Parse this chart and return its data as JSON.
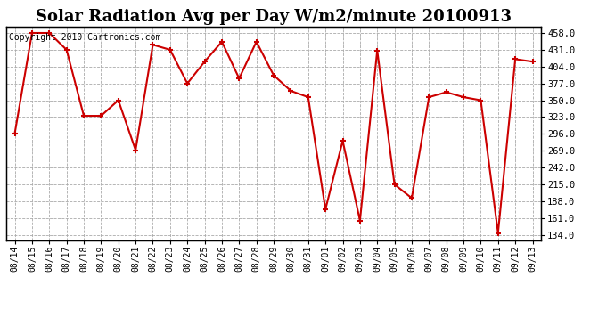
{
  "title": "Solar Radiation Avg per Day W/m2/minute 20100913",
  "copyright": "Copyright 2010 Cartronics.com",
  "labels": [
    "08/14",
    "08/15",
    "08/16",
    "08/17",
    "08/18",
    "08/19",
    "08/20",
    "08/21",
    "08/22",
    "08/23",
    "08/24",
    "08/25",
    "08/26",
    "08/27",
    "08/28",
    "08/29",
    "08/30",
    "08/31",
    "09/01",
    "09/02",
    "09/03",
    "09/04",
    "09/05",
    "09/06",
    "09/07",
    "09/08",
    "09/09",
    "09/10",
    "09/11",
    "09/12",
    "09/13"
  ],
  "values": [
    297,
    458,
    458,
    431,
    325,
    325,
    350,
    270,
    439,
    431,
    377,
    412,
    444,
    385,
    444,
    390,
    365,
    355,
    175,
    285,
    157,
    430,
    215,
    193,
    355,
    363,
    355,
    350,
    137,
    416,
    412
  ],
  "line_color": "#cc0000",
  "marker_color": "#cc0000",
  "bg_color": "#ffffff",
  "grid_color": "#aaaaaa",
  "yticks": [
    134.0,
    161.0,
    188.0,
    215.0,
    242.0,
    269.0,
    296.0,
    323.0,
    350.0,
    377.0,
    404.0,
    431.0,
    458.0
  ],
  "ymin": 125,
  "ymax": 468,
  "title_fontsize": 13,
  "copyright_fontsize": 7,
  "tick_fontsize": 7.5,
  "xtick_fontsize": 7
}
